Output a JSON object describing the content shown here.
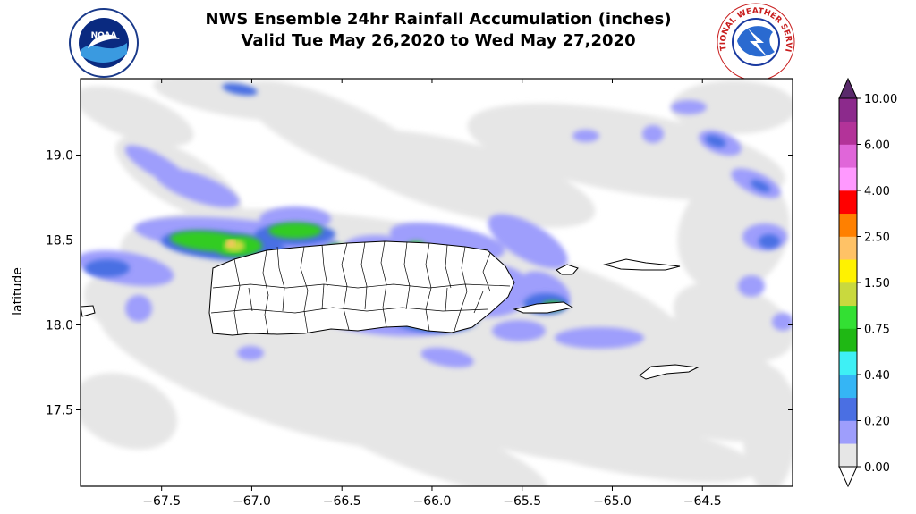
{
  "title": {
    "line1": "NWS Ensemble 24hr Rainfall Accumulation (inches)",
    "line2": "Valid Tue May 26,2020 to Wed May 27,2020"
  },
  "logos": {
    "left": "noaa-logo",
    "left_text": "NOAA",
    "right": "national-weather-service-logo",
    "right_text": "NATIONAL WEATHER SERVICE"
  },
  "axes": {
    "ylabel": "latitude",
    "lon_range": [
      -67.95,
      -64.0
    ],
    "lat_range": [
      17.05,
      19.45
    ],
    "x_ticks": [
      "-67.5",
      "-67.0",
      "-66.5",
      "-66.0",
      "-65.5",
      "-65.0",
      "-64.5"
    ],
    "y_ticks": [
      "19.0",
      "18.5",
      "18.0",
      "17.5"
    ]
  },
  "colorbar": {
    "labels": [
      "10.00",
      "6.00",
      "4.00",
      "2.50",
      "1.50",
      "0.75",
      "0.40",
      "0.20",
      "0.00"
    ],
    "colors": [
      "#e6e6e6",
      "#9e9efc",
      "#4a6fe3",
      "#35b5f5",
      "#3ef0f5",
      "#1fb814",
      "#33e033",
      "#c9d93e",
      "#fff200",
      "#ffc266",
      "#ff8000",
      "#ff0000",
      "#ff99ff",
      "#e066d9",
      "#b33399",
      "#8c2a8c"
    ],
    "over_color": "#5a2a6b"
  },
  "map_colors": {
    "light": "#e6e6e6",
    "lav": "#9e9efc",
    "blue": "#4a6fe3",
    "green": "#33cc22",
    "yellow": "#c9d93e",
    "orange": "#ffc266"
  }
}
